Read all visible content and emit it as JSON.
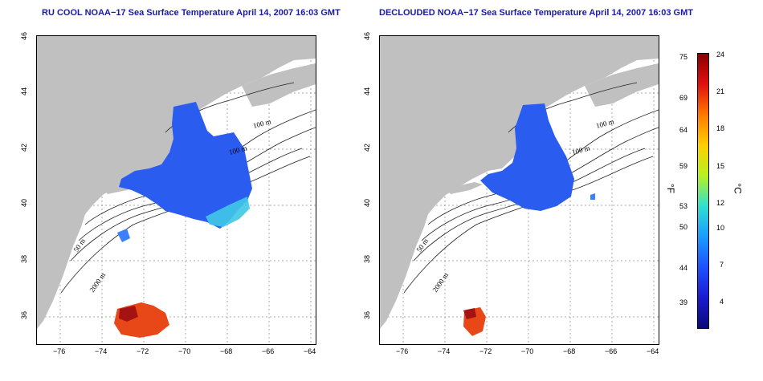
{
  "panels": [
    {
      "title": "RU COOL NOAA−17 Sea Surface Temperature April 14, 2007 16:03 GMT"
    },
    {
      "title": "DECLOUDED NOAA−17 Sea Surface Temperature April 14, 2007 16:03 GMT"
    }
  ],
  "x_ticks": [
    "−76",
    "−74",
    "−72",
    "−70",
    "−68",
    "−66",
    "−64"
  ],
  "y_ticks": [
    "36",
    "38",
    "40",
    "42",
    "44",
    "46"
  ],
  "contour_labels": {
    "left": [
      "100 m",
      "100 m",
      "50 m",
      "2000 m"
    ],
    "right": [
      "100 m",
      "100 m",
      "50 m",
      "2000 m"
    ]
  },
  "colorbar": {
    "fahrenheit_ticks": [
      "75",
      "69",
      "64",
      "59",
      "53",
      "50",
      "44",
      "39"
    ],
    "celsius_ticks": [
      "24",
      "21",
      "18",
      "15",
      "12",
      "10",
      "7",
      "4"
    ],
    "unit_left": "°F",
    "unit_right": "°C",
    "colors": [
      "#8b0000",
      "#e01010",
      "#ff7a00",
      "#ffd000",
      "#b8f020",
      "#30e0d0",
      "#1a9cff",
      "#1f52ff",
      "#1a1ad0",
      "#0a0a7a"
    ]
  },
  "colors": {
    "land": "#c0c0c0",
    "water": "#ffffff",
    "title": "#1a1aa6",
    "cold_sst": "#2a5cf0",
    "warm_sst": "#e84818"
  }
}
